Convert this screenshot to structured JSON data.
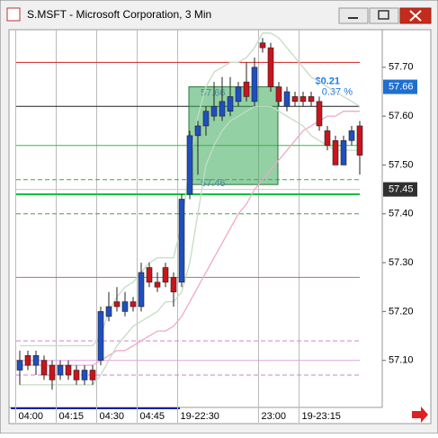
{
  "window": {
    "title": "S.MSFT - Microsoft Corporation, 3 Min"
  },
  "chart_data": {
    "type": "candlestick",
    "categories": [
      "04:00",
      null,
      null,
      null,
      null,
      "04:15",
      null,
      null,
      null,
      null,
      "04:30",
      null,
      null,
      null,
      null,
      "04:45",
      null,
      null,
      null,
      null,
      "19-22:30",
      null,
      null,
      null,
      null,
      null,
      null,
      null,
      null,
      null,
      "23:00",
      null,
      null,
      null,
      null,
      "19-23:15",
      null,
      null,
      null,
      null,
      null,
      null,
      null
    ],
    "open": [
      57.08,
      57.11,
      57.09,
      57.1,
      57.09,
      57.07,
      57.09,
      57.08,
      57.06,
      57.08,
      57.1,
      57.19,
      57.22,
      57.2,
      57.22,
      57.21,
      57.29,
      57.26,
      57.29,
      57.27,
      57.26,
      57.44,
      57.56,
      57.58,
      57.6,
      57.6,
      57.61,
      57.63,
      57.67,
      57.63,
      57.75,
      57.74,
      57.66,
      57.62,
      57.64,
      57.64,
      57.64,
      57.63,
      57.57,
      57.55,
      57.5,
      57.55,
      57.58
    ],
    "high": [
      57.12,
      57.12,
      57.12,
      57.11,
      57.1,
      57.1,
      57.1,
      57.09,
      57.09,
      57.09,
      57.21,
      57.24,
      57.25,
      57.24,
      57.23,
      57.3,
      57.3,
      57.28,
      57.3,
      57.28,
      57.44,
      57.57,
      57.59,
      57.62,
      57.67,
      57.68,
      57.68,
      57.67,
      57.71,
      57.72,
      57.76,
      57.75,
      57.67,
      57.66,
      57.65,
      57.65,
      57.65,
      57.64,
      57.58,
      57.56,
      57.56,
      57.58,
      57.59
    ],
    "low": [
      57.05,
      57.08,
      57.07,
      57.06,
      57.04,
      57.06,
      57.06,
      57.05,
      57.05,
      57.05,
      57.09,
      57.18,
      57.2,
      57.19,
      57.2,
      57.2,
      57.25,
      57.24,
      57.25,
      57.21,
      57.25,
      57.43,
      57.48,
      57.56,
      57.59,
      57.59,
      57.6,
      57.62,
      57.63,
      57.62,
      57.73,
      57.65,
      57.62,
      57.61,
      57.62,
      57.62,
      57.62,
      57.57,
      57.53,
      57.5,
      57.5,
      57.54,
      57.48
    ],
    "close": [
      57.1,
      57.09,
      57.11,
      57.07,
      57.06,
      57.09,
      57.07,
      57.06,
      57.08,
      57.06,
      57.2,
      57.21,
      57.21,
      57.22,
      57.21,
      57.28,
      57.26,
      57.25,
      57.26,
      57.24,
      57.43,
      57.56,
      57.58,
      57.61,
      57.62,
      57.63,
      57.64,
      57.66,
      57.64,
      57.7,
      57.74,
      57.66,
      57.63,
      57.65,
      57.63,
      57.63,
      57.63,
      57.58,
      57.54,
      57.5,
      57.55,
      57.57,
      57.52
    ],
    "up_color": "#1f4fbf",
    "down_color": "#c8141c",
    "series": [
      {
        "color": "#f0a8c8",
        "values": [
          57.09,
          57.09,
          57.09,
          57.09,
          57.09,
          57.09,
          57.09,
          57.09,
          57.09,
          57.09,
          57.1,
          57.11,
          57.12,
          57.12,
          57.13,
          57.14,
          57.15,
          57.16,
          57.16,
          57.17,
          57.19,
          57.22,
          57.25,
          57.28,
          57.31,
          57.34,
          57.37,
          57.4,
          57.42,
          57.45,
          57.47,
          57.49,
          57.51,
          57.53,
          57.55,
          57.57,
          57.58,
          57.59,
          57.6,
          57.6,
          57.61,
          57.61,
          57.61
        ]
      },
      {
        "color": "#c4dcc4",
        "values": [
          57.13,
          57.13,
          57.13,
          57.13,
          57.13,
          57.13,
          57.13,
          57.13,
          57.13,
          57.13,
          57.15,
          57.2,
          57.23,
          57.25,
          57.26,
          57.28,
          57.3,
          57.31,
          57.31,
          57.31,
          57.38,
          57.5,
          57.6,
          57.66,
          57.69,
          57.7,
          57.71,
          57.71,
          57.72,
          57.74,
          57.77,
          57.77,
          57.76,
          57.74,
          57.72,
          57.7,
          57.68,
          57.67,
          57.66,
          57.65,
          57.64,
          57.63,
          57.62
        ]
      },
      {
        "color": "#c4dcc4",
        "values": [
          57.05,
          57.05,
          57.05,
          57.05,
          57.05,
          57.05,
          57.05,
          57.05,
          57.05,
          57.05,
          57.07,
          57.1,
          57.13,
          57.15,
          57.17,
          57.18,
          57.19,
          57.2,
          57.22,
          57.22,
          57.24,
          57.3,
          57.4,
          57.5,
          57.54,
          57.57,
          57.59,
          57.6,
          57.61,
          57.62,
          57.62,
          57.62,
          57.61,
          57.6,
          57.59,
          57.58,
          57.56,
          57.55,
          57.54,
          57.53,
          57.53,
          57.53,
          57.53
        ]
      }
    ],
    "levels": [
      {
        "value": 57.71,
        "color": "#d02020",
        "dashed": false
      },
      {
        "value": 57.62,
        "color": "#202020",
        "dashed": false
      },
      {
        "value": 57.54,
        "color": "#30c030",
        "dashed": false
      },
      {
        "value": 57.47,
        "color": "#30b030",
        "dashed": true
      },
      {
        "value": 57.45,
        "color": "#d0c0d0",
        "dashed": false
      },
      {
        "value": 57.44,
        "color": "#10c040",
        "dashed": false
      },
      {
        "value": 57.4,
        "color": "#30b030",
        "dashed": true
      },
      {
        "value": 57.27,
        "color": "#b07070",
        "dashed": false
      },
      {
        "value": 57.14,
        "color": "#d080d0",
        "dashed": true
      },
      {
        "value": 57.1,
        "color": "#e0a0e0",
        "dashed": false
      },
      {
        "value": 57.07,
        "color": "#d080d0",
        "dashed": true
      }
    ],
    "measure": {
      "from": {
        "value": 57.46,
        "label": "57.46"
      },
      "to": {
        "value": 57.66,
        "label": "57.66"
      },
      "change": "$0.21",
      "percent": "0.37 %",
      "color": "#3aaa5a"
    },
    "price_tags": [
      {
        "value": 57.66,
        "label": "57.66",
        "color": "#1f6fd0"
      },
      {
        "value": 57.45,
        "label": "57.45",
        "color": "#303030"
      }
    ],
    "ylim": [
      57.0,
      57.777
    ],
    "yticks": [
      {
        "value": 57.1,
        "label": "57.10"
      },
      {
        "value": 57.2,
        "label": "57.20"
      },
      {
        "value": 57.3,
        "label": "57.30"
      },
      {
        "value": 57.4,
        "label": "57.40"
      },
      {
        "value": 57.5,
        "label": "57.50"
      },
      {
        "value": 57.6,
        "label": "57.60"
      },
      {
        "value": 57.7,
        "label": "57.70"
      }
    ]
  }
}
